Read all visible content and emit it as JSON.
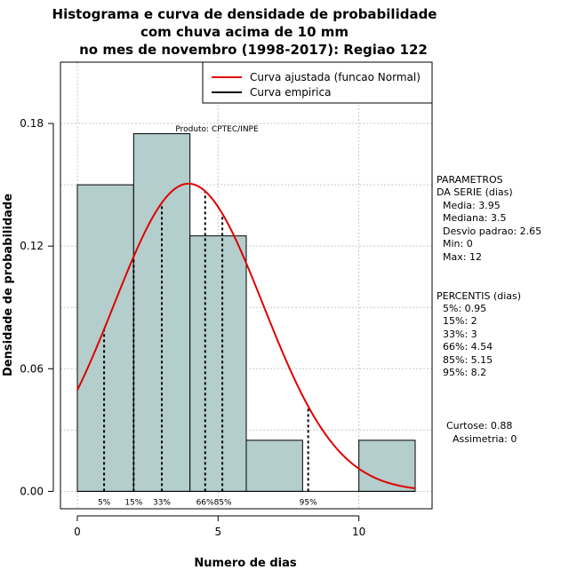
{
  "chart_data": {
    "type": "histogram",
    "title_lines": [
      "Histograma e curva de densidade de probabilidade",
      "com chuva acima de 10 mm",
      "no mes de novembro (1998-2017): Regiao 122"
    ],
    "xlabel": "Numero de dias",
    "ylabel": "Densidade de probabilidade",
    "xlim": [
      -0.6,
      12.6
    ],
    "ylim": [
      -0.0085,
      0.21
    ],
    "x_ticks": [
      0,
      5,
      10
    ],
    "y_ticks": [
      0.0,
      0.06,
      0.12,
      0.18
    ],
    "y_tick_labels": [
      "0.00",
      "0.06",
      "0.12",
      "0.18"
    ],
    "grid": true,
    "bins": [
      {
        "x0": 0,
        "x1": 2,
        "density": 0.15
      },
      {
        "x0": 2,
        "x1": 4,
        "density": 0.175
      },
      {
        "x0": 4,
        "x1": 6,
        "density": 0.125
      },
      {
        "x0": 6,
        "x1": 8,
        "density": 0.025
      },
      {
        "x0": 8,
        "x1": 10,
        "density": 0.0
      },
      {
        "x0": 10,
        "x1": 12,
        "density": 0.025
      }
    ],
    "bar_color": "#b4cdcd",
    "normal_fit": {
      "mean": 3.95,
      "sd": 2.65,
      "x_range": [
        0,
        12
      ],
      "color": "#e00000"
    },
    "percentile_lines": [
      {
        "label": "5%",
        "x": 0.95
      },
      {
        "label": "15%",
        "x": 2
      },
      {
        "label": "33%",
        "x": 3
      },
      {
        "label": "66%",
        "x": 4.54
      },
      {
        "label": "85%",
        "x": 5.15
      },
      {
        "label": "95%",
        "x": 8.2
      }
    ],
    "percentile_label_row": [
      {
        "text": "5%",
        "x": 0.95
      },
      {
        "text": "15%",
        "x": 2
      },
      {
        "text": "33%",
        "x": 3
      },
      {
        "text": "66%85%",
        "x": 4.85
      },
      {
        "text": "95%",
        "x": 8.2
      }
    ],
    "legend": [
      {
        "label": "Curva ajustada (funcao Normal)",
        "color": "#e00000"
      },
      {
        "label": "Curva empirica",
        "color": "#000000"
      }
    ],
    "product_label": "Produto: CPTEC/INPE",
    "side_panel": {
      "parametros_title": [
        "PARAMETROS",
        "DA SERIE (dias)"
      ],
      "parametros": [
        "Media: 3.95",
        "Mediana: 3.5",
        "Desvio padrao: 2.65",
        "Min: 0",
        "Max: 12"
      ],
      "percentis_title": "PERCENTIS (dias)",
      "percentis": [
        "5%: 0.95",
        "15%: 2",
        "33%: 3",
        "66%: 4.54",
        "85%: 5.15",
        "95%: 8.2"
      ],
      "curtose": "Curtose: 0.88",
      "assimetria": "Assimetria: 0"
    }
  }
}
